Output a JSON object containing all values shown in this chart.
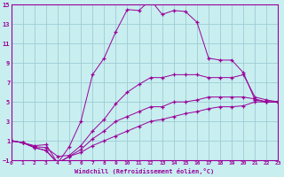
{
  "xlabel": "Windchill (Refroidissement éolien,°C)",
  "bg_color": "#c8eef0",
  "grid_color": "#9ecdd4",
  "line_color": "#990099",
  "marker": "+",
  "xmin": 0,
  "xmax": 23,
  "ymin": -1,
  "ymax": 15,
  "yticks": [
    -1,
    1,
    3,
    5,
    7,
    9,
    11,
    13,
    15
  ],
  "xticks": [
    0,
    1,
    2,
    3,
    4,
    5,
    6,
    7,
    8,
    9,
    10,
    11,
    12,
    13,
    14,
    15,
    16,
    17,
    18,
    19,
    20,
    21,
    22,
    23
  ],
  "lines": [
    [
      1.0,
      0.8,
      0.5,
      0.6,
      -1.3,
      0.4,
      3.0,
      7.8,
      9.5,
      12.2,
      14.5,
      14.4,
      15.5,
      14.0,
      14.4,
      14.3,
      13.2,
      9.5,
      9.3,
      9.3,
      8.0,
      5.2,
      5.0,
      5.0
    ],
    [
      1.0,
      0.8,
      0.4,
      0.3,
      -0.6,
      -0.5,
      0.5,
      2.0,
      3.2,
      4.8,
      6.0,
      6.8,
      7.5,
      7.5,
      7.8,
      7.8,
      7.8,
      7.5,
      7.5,
      7.5,
      7.8,
      5.5,
      5.2,
      5.0
    ],
    [
      1.0,
      0.8,
      0.3,
      0.0,
      -1.3,
      -0.6,
      0.1,
      1.2,
      2.0,
      3.0,
      3.5,
      4.0,
      4.5,
      4.5,
      5.0,
      5.0,
      5.2,
      5.5,
      5.5,
      5.5,
      5.5,
      5.3,
      5.0,
      5.0
    ],
    [
      1.0,
      0.8,
      0.3,
      0.0,
      -1.3,
      -0.6,
      -0.2,
      0.5,
      1.0,
      1.5,
      2.0,
      2.5,
      3.0,
      3.2,
      3.5,
      3.8,
      4.0,
      4.3,
      4.5,
      4.5,
      4.6,
      5.0,
      5.0,
      5.0
    ]
  ]
}
